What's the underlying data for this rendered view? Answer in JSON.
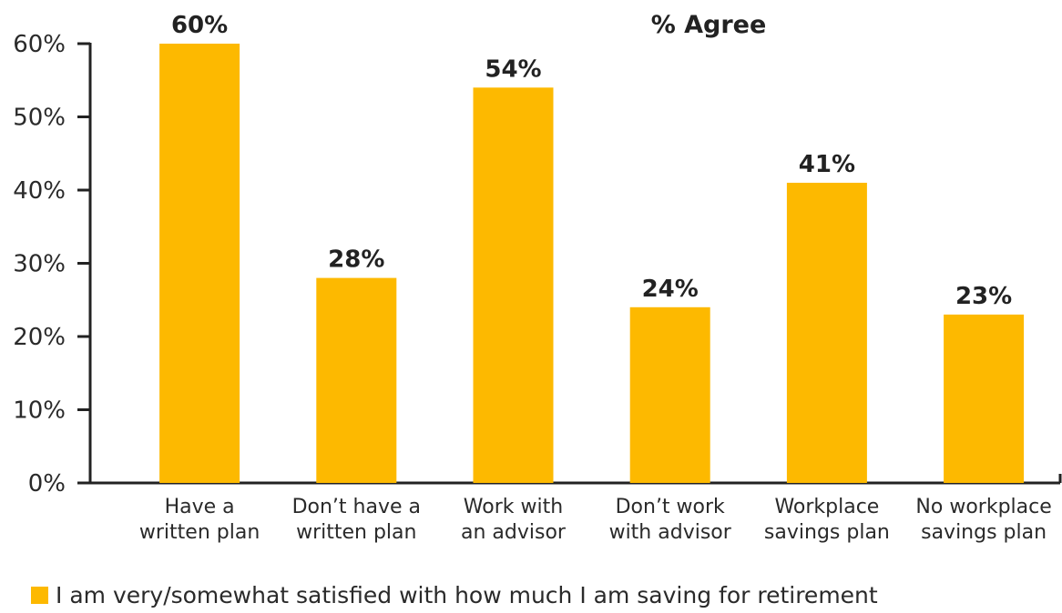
{
  "chart_data": {
    "type": "bar",
    "title": "% Agree",
    "categories": [
      [
        "Have a",
        "written plan"
      ],
      [
        "Don’t have a",
        "written plan"
      ],
      [
        "Work with",
        "an advisor"
      ],
      [
        "Don’t work",
        "with advisor"
      ],
      [
        "Workplace",
        "savings plan"
      ],
      [
        "No workplace",
        "savings plan"
      ]
    ],
    "series": [
      {
        "name": "I am very/somewhat satisfied with how much I am saving for retirement",
        "values": [
          60,
          28,
          54,
          24,
          41,
          23
        ]
      }
    ],
    "data_labels": [
      "60%",
      "28%",
      "54%",
      "24%",
      "41%",
      "23%"
    ],
    "y_ticks": [
      "0%",
      "10%",
      "20%",
      "30%",
      "40%",
      "50%",
      "60%"
    ],
    "ylim": [
      0,
      60
    ],
    "xlabel": "",
    "ylabel": "",
    "grid": false,
    "legend_position": "bottom-left",
    "colors": {
      "bar": "#FDB900",
      "axis": "#222222",
      "text": "#2a2a2a"
    }
  }
}
